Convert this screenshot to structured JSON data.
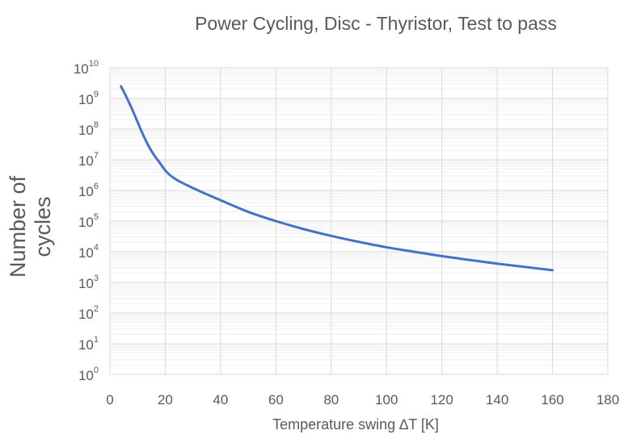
{
  "chart_data": {
    "type": "line",
    "title": "Power Cycling, Disc - Thyristor, Test to pass",
    "xlabel": "Temperature  swing ∆T [K]",
    "ylabel": "Number of cycles",
    "xlim": [
      0,
      180
    ],
    "ylim": [
      1,
      10000000000
    ],
    "yscale": "log",
    "x_ticks": [
      "0",
      "20",
      "40",
      "60",
      "80",
      "100",
      "120",
      "140",
      "160",
      "180"
    ],
    "y_ticks": [
      {
        "base": "10",
        "exp": "0"
      },
      {
        "base": "10",
        "exp": "1"
      },
      {
        "base": "10",
        "exp": "2"
      },
      {
        "base": "10",
        "exp": "3"
      },
      {
        "base": "10",
        "exp": "4"
      },
      {
        "base": "10",
        "exp": "5"
      },
      {
        "base": "10",
        "exp": "6"
      },
      {
        "base": "10",
        "exp": "7"
      },
      {
        "base": "10",
        "exp": "8"
      },
      {
        "base": "10",
        "exp": "9"
      },
      {
        "base": "10",
        "exp": "10"
      }
    ],
    "grid": true,
    "legend": "none",
    "color": "#4472C4",
    "series": [
      {
        "x": [
          4,
          6,
          8,
          10,
          12,
          14,
          16,
          18,
          20,
          22,
          25,
          30,
          35,
          40,
          50,
          60,
          70,
          80,
          90,
          100,
          110,
          120,
          130,
          140,
          150,
          160
        ],
        "y": [
          2500000000,
          1100000000,
          450000000,
          170000000,
          65000000,
          28000000,
          14000000,
          8000000,
          4500000,
          3000000,
          2000000,
          1200000,
          750000,
          480000,
          200000,
          100000,
          55000,
          33000,
          21000,
          14000,
          10000,
          7200,
          5400,
          4100,
          3200,
          2500
        ]
      }
    ]
  }
}
